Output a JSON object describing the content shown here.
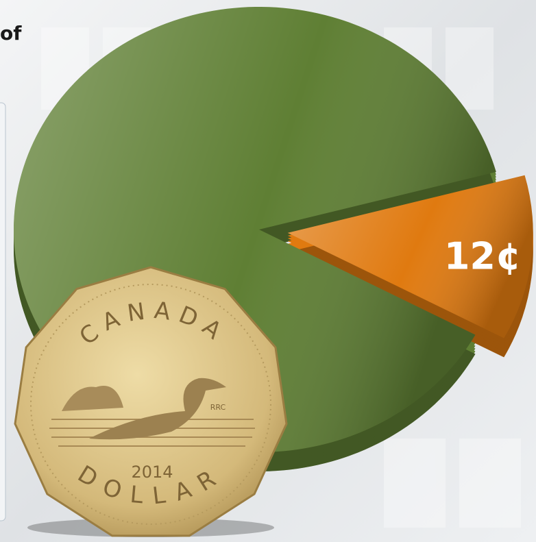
{
  "chart_data": {
    "type": "pie",
    "title": "of",
    "values": [
      88,
      12
    ],
    "value_labels": [
      null,
      "12¢"
    ],
    "colors": [
      "#5f7f34",
      "#e07a10"
    ]
  },
  "coin": {
    "top": "CANADA",
    "bottom": "DOLLAR",
    "year": "2014",
    "mark": "RRC"
  }
}
